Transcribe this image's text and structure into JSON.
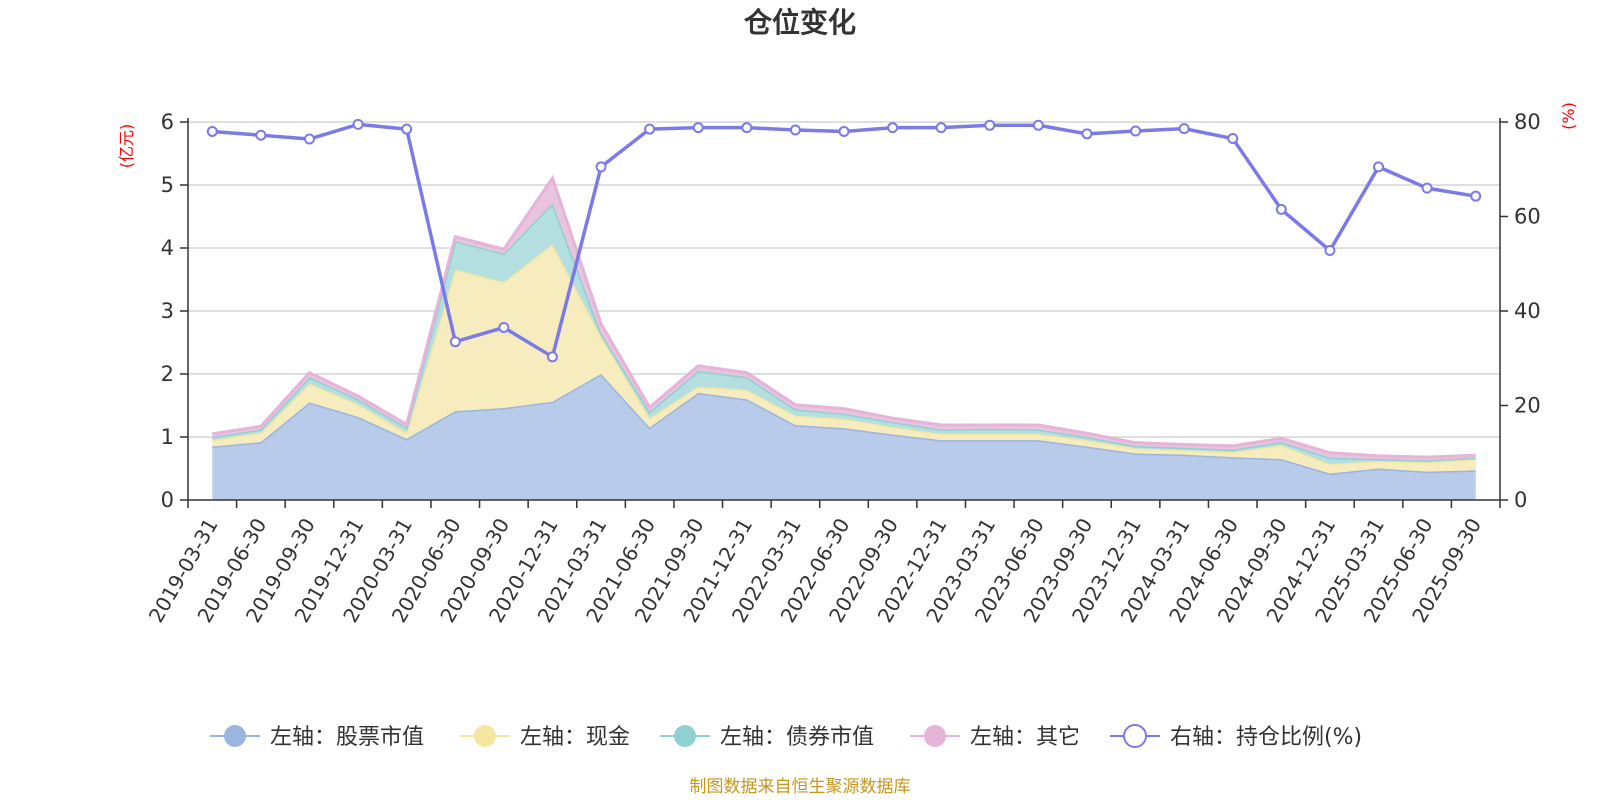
{
  "chart_data": {
    "type": "area",
    "title": "仓位变化",
    "y_left_unit": "(亿元)",
    "y_right_unit": "(%)",
    "ylim_left": [
      0,
      6
    ],
    "ylim_right": [
      0,
      80
    ],
    "y_left_ticks": [
      "0",
      "1",
      "2",
      "3",
      "4",
      "5",
      "6"
    ],
    "y_right_ticks": [
      "0",
      "20",
      "40",
      "60",
      "80"
    ],
    "grid": true,
    "legend_position": "bottom",
    "categories": [
      "2019-03-31",
      "2019-06-30",
      "2019-09-30",
      "2019-12-31",
      "2020-03-31",
      "2020-06-30",
      "2020-09-30",
      "2020-12-31",
      "2021-03-31",
      "2021-06-30",
      "2021-09-30",
      "2021-12-31",
      "2022-03-31",
      "2022-06-30",
      "2022-09-30",
      "2022-12-31",
      "2023-03-31",
      "2023-06-30",
      "2023-09-30",
      "2023-12-31",
      "2024-03-31",
      "2024-06-30",
      "2024-09-30",
      "2024-12-31",
      "2025-03-31",
      "2025-06-30",
      "2025-09-30"
    ],
    "series": [
      {
        "name": "左轴：股票市值",
        "axis": "left",
        "kind": "area",
        "color": "#9ab5e0",
        "fill": "#b8cbea",
        "values": [
          0.85,
          0.92,
          1.55,
          1.32,
          0.97,
          1.41,
          1.46,
          1.56,
          2.0,
          1.15,
          1.7,
          1.6,
          1.19,
          1.14,
          1.04,
          0.95,
          0.95,
          0.95,
          0.85,
          0.74,
          0.72,
          0.68,
          0.65,
          0.42,
          0.5,
          0.45,
          0.47
        ]
      },
      {
        "name": "左轴：现金",
        "axis": "left",
        "kind": "area",
        "color": "#f5e6a0",
        "fill": "#f7ecbe",
        "values": [
          0.1,
          0.15,
          0.3,
          0.2,
          0.1,
          2.25,
          2.0,
          2.5,
          0.6,
          0.15,
          0.1,
          0.15,
          0.15,
          0.15,
          0.12,
          0.1,
          0.1,
          0.1,
          0.1,
          0.08,
          0.07,
          0.08,
          0.22,
          0.15,
          0.12,
          0.15,
          0.18
        ]
      },
      {
        "name": "左轴：债券市值",
        "axis": "left",
        "kind": "area",
        "color": "#8fd0d0",
        "fill": "#b3dfe0",
        "values": [
          0.05,
          0.05,
          0.1,
          0.08,
          0.08,
          0.45,
          0.45,
          0.65,
          0.05,
          0.1,
          0.25,
          0.2,
          0.1,
          0.08,
          0.08,
          0.07,
          0.08,
          0.07,
          0.05,
          0.04,
          0.04,
          0.04,
          0.05,
          0.1,
          0.03,
          0.03,
          0.02
        ]
      },
      {
        "name": "左轴：其它",
        "axis": "left",
        "kind": "area",
        "color": "#e6b3d9",
        "fill": "#e9c4de",
        "values": [
          0.05,
          0.05,
          0.07,
          0.05,
          0.05,
          0.07,
          0.07,
          0.4,
          0.15,
          0.07,
          0.08,
          0.07,
          0.07,
          0.08,
          0.06,
          0.07,
          0.06,
          0.07,
          0.06,
          0.05,
          0.05,
          0.06,
          0.06,
          0.08,
          0.05,
          0.05,
          0.04
        ]
      },
      {
        "name": "右轴：持仓比例(%)",
        "axis": "right",
        "kind": "line",
        "color": "#7b7be8",
        "values": [
          78,
          77.2,
          76.4,
          79.5,
          78.5,
          33.5,
          36.5,
          30.3,
          70.5,
          78.5,
          78.8,
          78.8,
          78.3,
          78,
          78.8,
          78.8,
          79.3,
          79.3,
          77.5,
          78.1,
          78.6,
          76.5,
          61.5,
          52.8,
          70.5,
          66,
          64.3
        ]
      }
    ],
    "source_note": "制图数据来自恒生聚源数据库"
  }
}
